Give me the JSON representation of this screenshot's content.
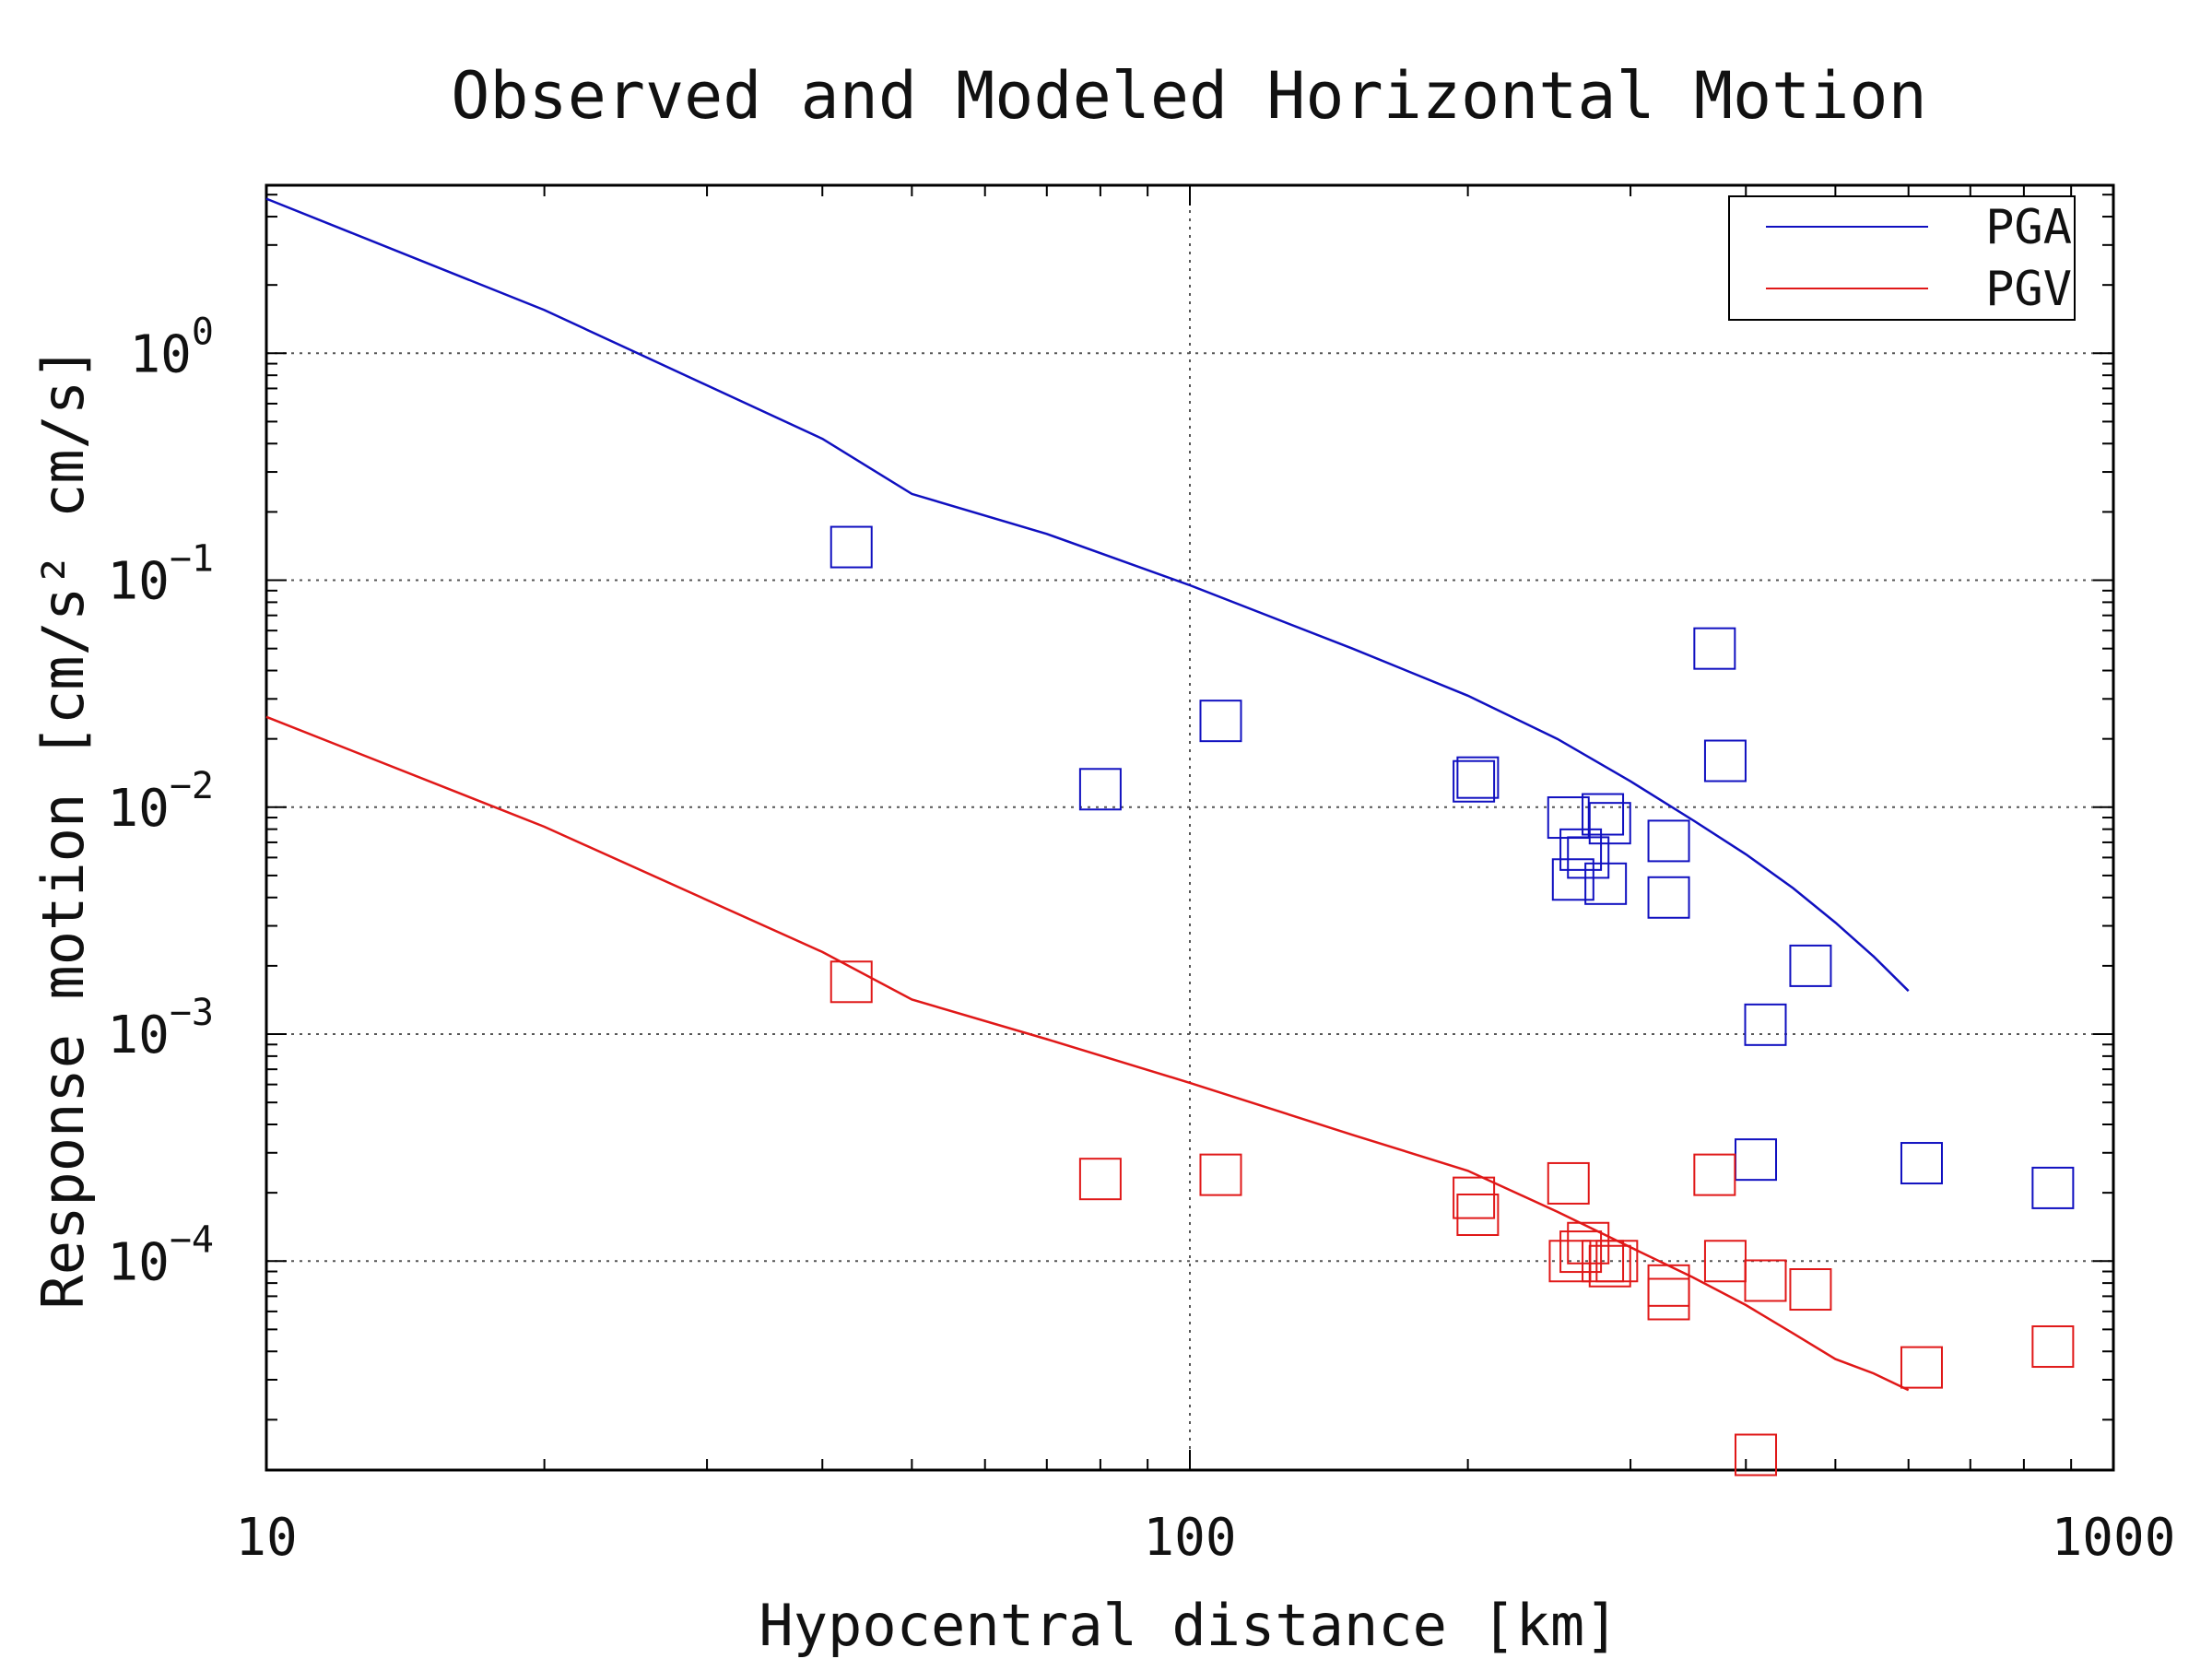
{
  "chart_data": {
    "type": "scatter",
    "title": "Observed and Modeled Horizontal Motion",
    "xlabel": "Hypocentral distance [km]",
    "ylabel": "Response motion [cm/s²  cm/s]",
    "x_scale": "log",
    "y_scale": "log",
    "xlim": [
      10,
      1000
    ],
    "ylim": [
      1.2e-05,
      5.5
    ],
    "x_ticks": [
      {
        "value": 10,
        "label": "10"
      },
      {
        "value": 100,
        "label": "100"
      },
      {
        "value": 1000,
        "label": "1000"
      }
    ],
    "y_ticks": [
      {
        "value": 1,
        "base": "10",
        "exp": "0"
      },
      {
        "value": 0.1,
        "base": "10",
        "exp": "−1"
      },
      {
        "value": 0.01,
        "base": "10",
        "exp": "−2"
      },
      {
        "value": 0.001,
        "base": "10",
        "exp": "−3"
      },
      {
        "value": 0.0001,
        "base": "10",
        "exp": "−4"
      }
    ],
    "grid": true,
    "legend_position": "top-right",
    "colors": {
      "pga": "#1010c0",
      "pgv": "#e01818"
    },
    "model_lines": [
      {
        "name": "PGA",
        "color": "#1010c0",
        "points": [
          [
            10,
            4.8
          ],
          [
            20,
            1.55
          ],
          [
            40,
            0.42
          ],
          [
            50,
            0.24
          ],
          [
            70,
            0.16
          ],
          [
            100,
            0.095
          ],
          [
            150,
            0.05
          ],
          [
            200,
            0.031
          ],
          [
            250,
            0.02
          ],
          [
            300,
            0.013
          ],
          [
            350,
            0.0088
          ],
          [
            400,
            0.0062
          ],
          [
            450,
            0.0044
          ],
          [
            500,
            0.0031
          ],
          [
            550,
            0.0022
          ],
          [
            600,
            0.00155
          ]
        ]
      },
      {
        "name": "PGV",
        "color": "#e01818",
        "points": [
          [
            10,
            0.025
          ],
          [
            20,
            0.0082
          ],
          [
            40,
            0.0023
          ],
          [
            50,
            0.00142
          ],
          [
            70,
            0.00095
          ],
          [
            100,
            0.00061
          ],
          [
            150,
            0.00036
          ],
          [
            200,
            0.00025
          ],
          [
            250,
            0.000165
          ],
          [
            300,
            0.000115
          ],
          [
            350,
            8.5e-05
          ],
          [
            400,
            6.4e-05
          ],
          [
            450,
            4.8e-05
          ],
          [
            500,
            3.7e-05
          ],
          [
            550,
            3.2e-05
          ],
          [
            600,
            2.7e-05
          ]
        ]
      }
    ],
    "observed": [
      {
        "series": "PGA",
        "color": "#1010c0",
        "points": [
          [
            43,
            0.14
          ],
          [
            80,
            0.012
          ],
          [
            108,
            0.024
          ],
          [
            203,
            0.013
          ],
          [
            205,
            0.0135
          ],
          [
            257,
            0.009
          ],
          [
            260,
            0.0048
          ],
          [
            265,
            0.0065
          ],
          [
            270,
            0.006
          ],
          [
            280,
            0.0093
          ],
          [
            282,
            0.0046
          ],
          [
            285,
            0.0085
          ],
          [
            330,
            0.0071
          ],
          [
            330,
            0.004
          ],
          [
            370,
            0.05
          ],
          [
            380,
            0.016
          ],
          [
            410,
            0.00028
          ],
          [
            420,
            0.0011
          ],
          [
            470,
            0.002
          ],
          [
            620,
            0.00027
          ],
          [
            860,
            0.00021
          ]
        ]
      },
      {
        "series": "PGV",
        "color": "#e01818",
        "points": [
          [
            43,
            0.0017
          ],
          [
            80,
            0.00023
          ],
          [
            108,
            0.00024
          ],
          [
            203,
            0.00019
          ],
          [
            205,
            0.00016
          ],
          [
            257,
            0.00022
          ],
          [
            258,
            0.0001
          ],
          [
            265,
            0.00011
          ],
          [
            270,
            0.00012
          ],
          [
            280,
            0.0001
          ],
          [
            285,
            9.5e-05
          ],
          [
            290,
            0.0001
          ],
          [
            330,
            6.8e-05
          ],
          [
            330,
            7.8e-05
          ],
          [
            370,
            0.00024
          ],
          [
            380,
            0.0001
          ],
          [
            410,
            1.4e-05
          ],
          [
            420,
            8.2e-05
          ],
          [
            470,
            7.5e-05
          ],
          [
            620,
            3.4e-05
          ],
          [
            860,
            4.2e-05
          ]
        ]
      }
    ]
  }
}
